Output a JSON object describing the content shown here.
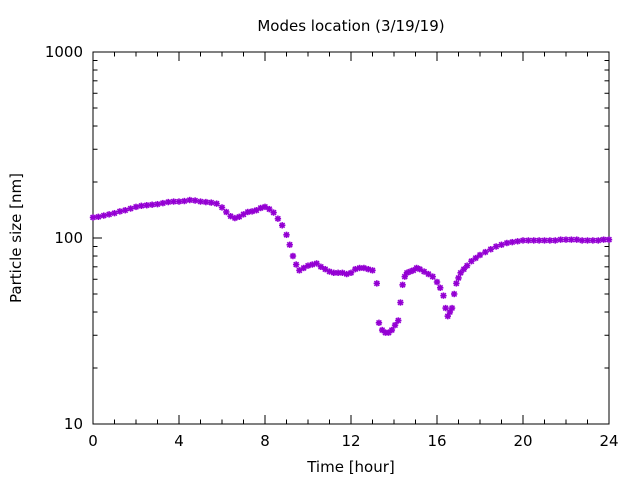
{
  "chart_data": {
    "type": "scatter",
    "title": "Modes location (3/19/19)",
    "xlabel": "Time [hour]",
    "ylabel": "Particle size [nm]",
    "xlim": [
      0,
      24
    ],
    "ylim": [
      10,
      1000
    ],
    "yscale": "log",
    "xticks": [
      0,
      4,
      8,
      12,
      16,
      20,
      24
    ],
    "xtick_labels": [
      "0",
      "4",
      "8",
      "12",
      "16",
      "20",
      "24"
    ],
    "yticks": [
      10,
      100,
      1000
    ],
    "ytick_labels": [
      "10",
      "100",
      "1000"
    ],
    "grid": false,
    "legend": "none",
    "marker_color": "#9400d3",
    "series": [
      {
        "name": "modes",
        "x": [
          0,
          0.25,
          0.5,
          0.75,
          1,
          1.25,
          1.5,
          1.75,
          2,
          2.25,
          2.5,
          2.75,
          3,
          3.25,
          3.5,
          3.75,
          4,
          4.25,
          4.5,
          4.75,
          5,
          5.25,
          5.5,
          5.75,
          6,
          6.2,
          6.4,
          6.6,
          6.8,
          7,
          7.2,
          7.4,
          7.6,
          7.8,
          8,
          8.2,
          8.4,
          8.6,
          8.8,
          9,
          9.15,
          9.3,
          9.45,
          9.6,
          9.8,
          10,
          10.2,
          10.4,
          10.6,
          10.8,
          11,
          11.2,
          11.4,
          11.6,
          11.8,
          12,
          12.2,
          12.4,
          12.6,
          12.8,
          13,
          13.2,
          13.3,
          13.45,
          13.6,
          13.75,
          13.9,
          14.05,
          14.2,
          14.3,
          14.4,
          14.5,
          14.6,
          14.75,
          14.9,
          15.05,
          15.2,
          15.4,
          15.6,
          15.8,
          16,
          16.15,
          16.3,
          16.4,
          16.5,
          16.6,
          16.7,
          16.8,
          16.9,
          17,
          17.1,
          17.25,
          17.4,
          17.6,
          17.8,
          18,
          18.25,
          18.5,
          18.75,
          19,
          19.25,
          19.5,
          19.75,
          20,
          20.25,
          20.5,
          20.75,
          21,
          21.25,
          21.5,
          21.75,
          22,
          22.25,
          22.5,
          22.75,
          23,
          23.25,
          23.5,
          23.75,
          24
        ],
        "y": [
          129,
          130,
          132,
          134,
          136,
          139,
          141,
          144,
          147,
          149,
          150,
          151,
          152,
          154,
          156,
          157,
          157,
          158,
          160,
          159,
          157,
          156,
          155,
          153,
          146,
          138,
          131,
          128,
          130,
          134,
          138,
          139,
          141,
          145,
          147,
          143,
          137,
          127,
          117,
          104,
          92,
          80,
          72,
          67,
          69,
          71,
          72,
          73,
          70,
          68,
          66,
          65,
          65,
          65,
          64,
          65,
          68,
          69,
          69,
          68,
          67,
          57,
          35,
          32,
          31,
          31,
          32,
          34,
          36,
          45,
          56,
          62,
          65,
          66,
          67,
          69,
          68,
          66,
          64,
          62,
          58,
          54,
          49,
          42,
          38,
          40,
          42,
          50,
          57,
          61,
          65,
          68,
          71,
          75,
          78,
          81,
          84,
          87,
          90,
          92,
          94,
          95,
          96,
          97,
          97,
          97,
          97,
          97,
          97,
          97,
          98,
          98,
          98,
          98,
          97,
          97,
          97,
          97,
          98,
          98
        ]
      }
    ]
  }
}
